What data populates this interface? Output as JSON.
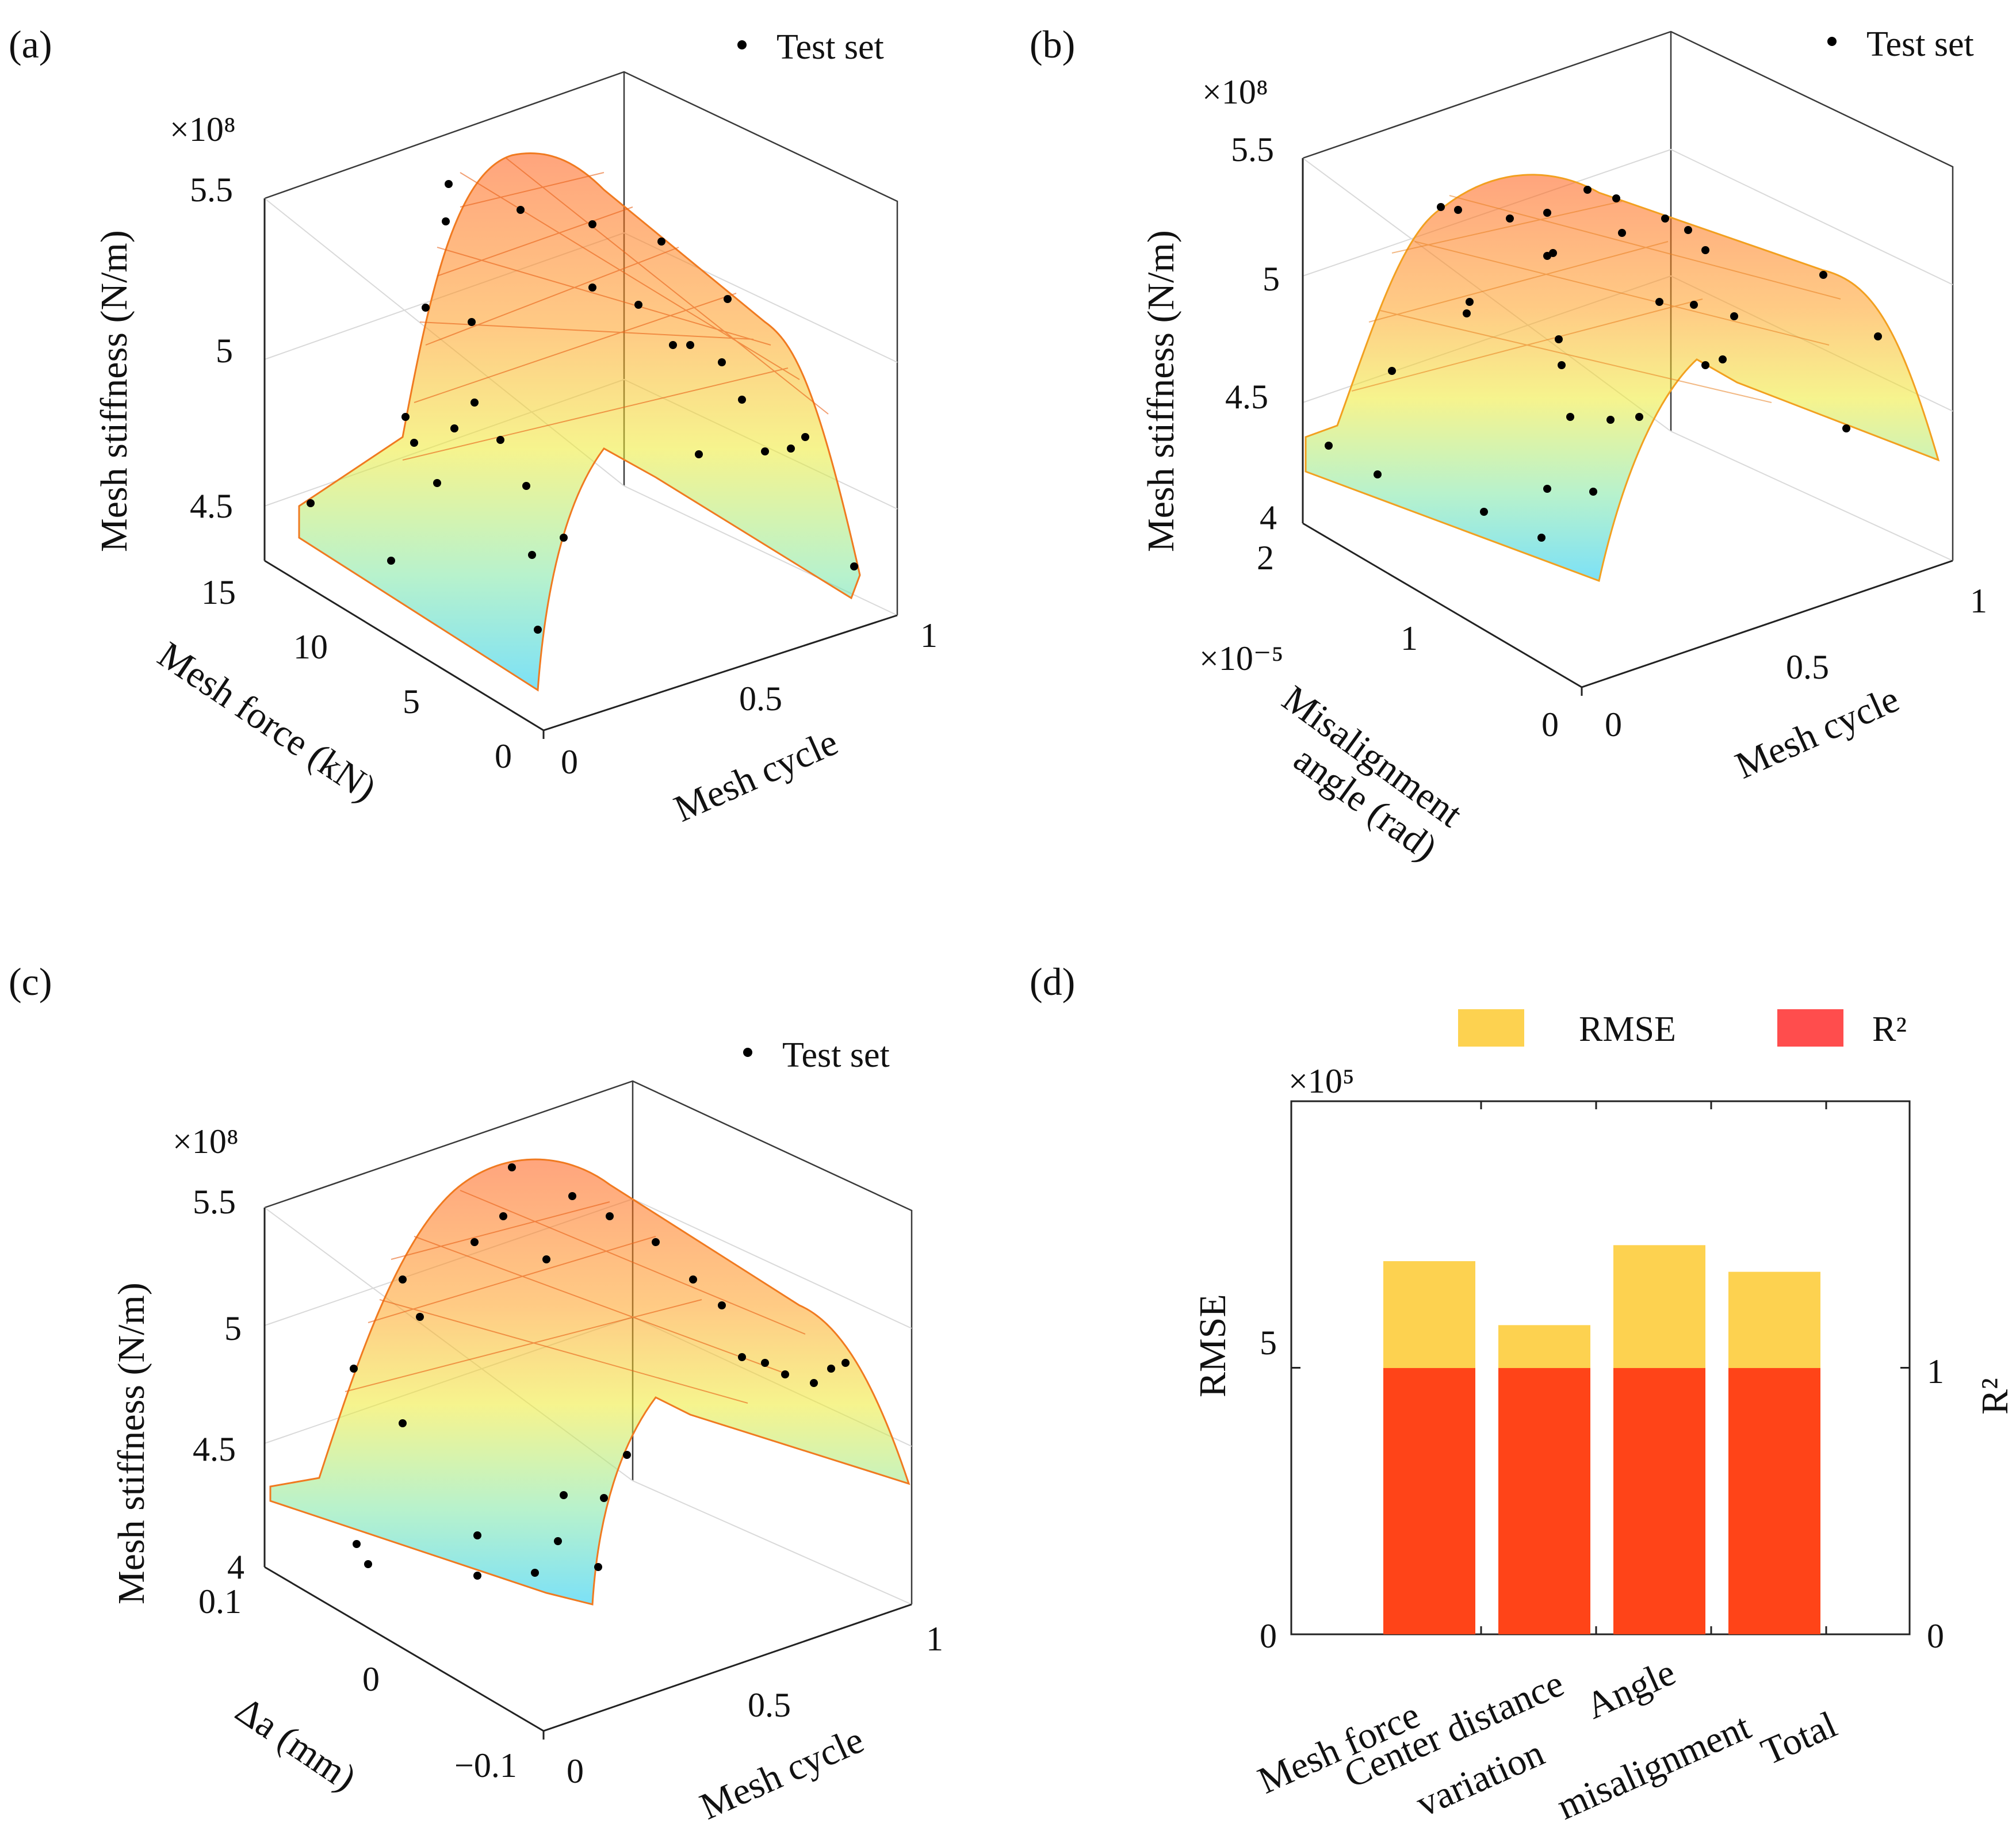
{
  "panels": {
    "a": {
      "label": "(a)",
      "z_exponent": "×10⁸",
      "zlabel": "Mesh stiffness  (N/m)",
      "ylabel": "Mesh force (kN)",
      "xlabel": "Mesh cycle",
      "legend": "Test set",
      "z_ticks": [
        "4.5",
        "5",
        "5.5"
      ],
      "y_ticks": [
        "0",
        "5",
        "10",
        "15"
      ],
      "x_ticks": [
        "0",
        "0.5",
        "1"
      ]
    },
    "b": {
      "label": "(b)",
      "z_exponent": "×10⁸",
      "zlabel": "Mesh stiffness  (N/m)",
      "ylabel_line1": "Misalignment",
      "ylabel_line2": "angle (rad)",
      "y_exponent": "×10⁻⁵",
      "xlabel": "Mesh cycle",
      "legend": "Test set",
      "z_ticks": [
        "4",
        "4.5",
        "5",
        "5.5"
      ],
      "y_ticks": [
        "0",
        "1",
        "2"
      ],
      "x_ticks": [
        "0",
        "0.5",
        "1"
      ]
    },
    "c": {
      "label": "(c)",
      "z_exponent": "×10⁸",
      "zlabel": "Mesh stiffness  (N/m)",
      "ylabel": "Δa  (mm)",
      "xlabel": "Mesh cycle",
      "legend": "Test set",
      "z_ticks": [
        "4",
        "4.5",
        "5",
        "5.5"
      ],
      "y_ticks": [
        "−0.1",
        "0",
        "0.1"
      ],
      "x_ticks": [
        "0",
        "0.5",
        "1"
      ]
    },
    "d": {
      "label": "(d)",
      "rmse_exponent": "×10⁵",
      "left_label": "RMSE",
      "right_label": "R²",
      "legend_rmse": "RMSE",
      "legend_r2": "R²",
      "left_ticks": [
        "0",
        "5"
      ],
      "right_ticks": [
        "0",
        "1"
      ],
      "categories": [
        "Mesh force",
        "Center distance variation",
        "Angle misalignment",
        "Total"
      ],
      "category_lines": [
        [
          "Mesh force"
        ],
        [
          "Center distance",
          "variation"
        ],
        [
          "Angle",
          "misalignment"
        ],
        [
          "Total"
        ]
      ]
    }
  },
  "colors": {
    "rmse": "#FDD250",
    "r2": "#FF4418",
    "surface_low": "#00CCFF",
    "surface_mid": "#FFFF00",
    "surface_high": "#FF3000",
    "points": "#000000"
  },
  "chart_data": [
    {
      "type": "surface3d",
      "panel": "a",
      "x": {
        "label": "Mesh cycle",
        "range": [
          0,
          1
        ]
      },
      "y": {
        "label": "Mesh force (kN)",
        "range": [
          0,
          15
        ]
      },
      "z": {
        "label": "Mesh stiffness (N/m)",
        "scale": 100000000.0,
        "range": [
          4.4,
          5.6
        ]
      },
      "series": [
        {
          "name": "Test set",
          "marker": "dot"
        }
      ]
    },
    {
      "type": "surface3d",
      "panel": "b",
      "x": {
        "label": "Mesh cycle",
        "range": [
          0,
          1
        ]
      },
      "y": {
        "label": "Misalignment angle (rad)",
        "scale": 1e-05,
        "range": [
          0,
          2
        ]
      },
      "z": {
        "label": "Mesh stiffness (N/m)",
        "scale": 100000000.0,
        "range": [
          4.0,
          5.5
        ]
      },
      "series": [
        {
          "name": "Test set",
          "marker": "dot"
        }
      ]
    },
    {
      "type": "surface3d",
      "panel": "c",
      "x": {
        "label": "Mesh cycle",
        "range": [
          0,
          1
        ]
      },
      "y": {
        "label": "Δa (mm)",
        "range": [
          -0.1,
          0.1
        ]
      },
      "z": {
        "label": "Mesh stiffness (N/m)",
        "scale": 100000000.0,
        "range": [
          4.0,
          5.5
        ]
      },
      "series": [
        {
          "name": "Test set",
          "marker": "dot"
        }
      ]
    },
    {
      "type": "bar",
      "panel": "d",
      "categories": [
        "Mesh force",
        "Center distance variation",
        "Angle misalignment",
        "Total"
      ],
      "series": [
        {
          "name": "RMSE",
          "axis": "left",
          "scale": 100000.0,
          "values": [
            7.0,
            5.8,
            7.3,
            6.8
          ],
          "color": "#FDD250"
        },
        {
          "name": "R²",
          "axis": "right",
          "values": [
            0.999,
            0.999,
            0.999,
            0.999
          ],
          "color": "#FF4418"
        }
      ],
      "left_ylim": [
        0,
        10
      ],
      "right_ylim": [
        0,
        2
      ],
      "ylabel": "RMSE",
      "y2label": "R²",
      "legend_position": "top"
    }
  ]
}
